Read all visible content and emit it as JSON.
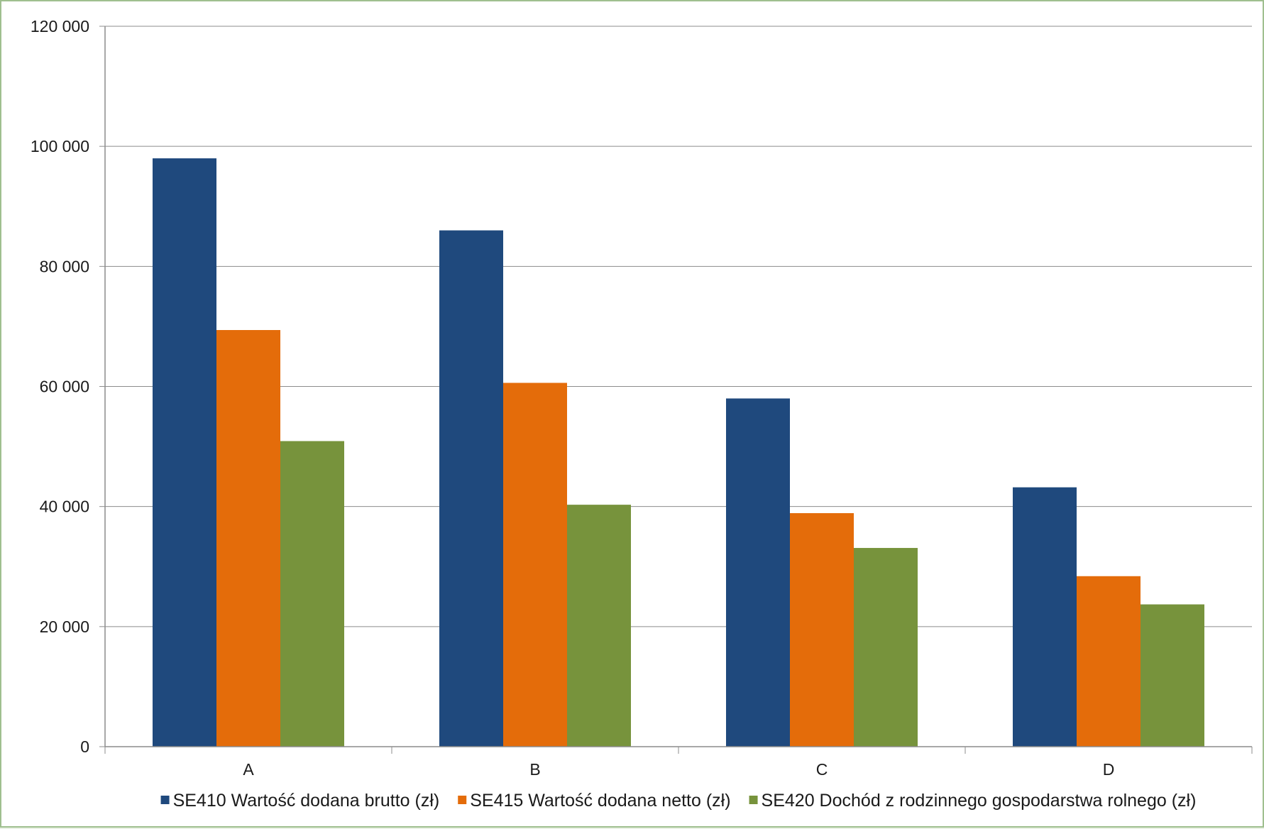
{
  "chart_data": {
    "type": "bar",
    "categories": [
      "A",
      "B",
      "C",
      "D"
    ],
    "series": [
      {
        "name": "SE410 Wartość dodana brutto (zł)",
        "values": [
          98000,
          86000,
          58000,
          43200
        ],
        "color": "#1f497d"
      },
      {
        "name": "SE415 Wartość dodana netto (zł)",
        "values": [
          69400,
          60600,
          38900,
          28400
        ],
        "color": "#e46c0a"
      },
      {
        "name": "SE420 Dochód z rodzinnego gospodarstwa rolnego (zł)",
        "values": [
          50900,
          40300,
          33100,
          23700
        ],
        "color": "#77933c"
      }
    ],
    "y_ticks": [
      "0",
      "20 000",
      "40 000",
      "60 000",
      "80 000",
      "100 000",
      "120 000"
    ],
    "ylim": [
      0,
      120000
    ],
    "grid": true,
    "legend_position": "bottom",
    "title": "",
    "xlabel": "",
    "ylabel": ""
  }
}
